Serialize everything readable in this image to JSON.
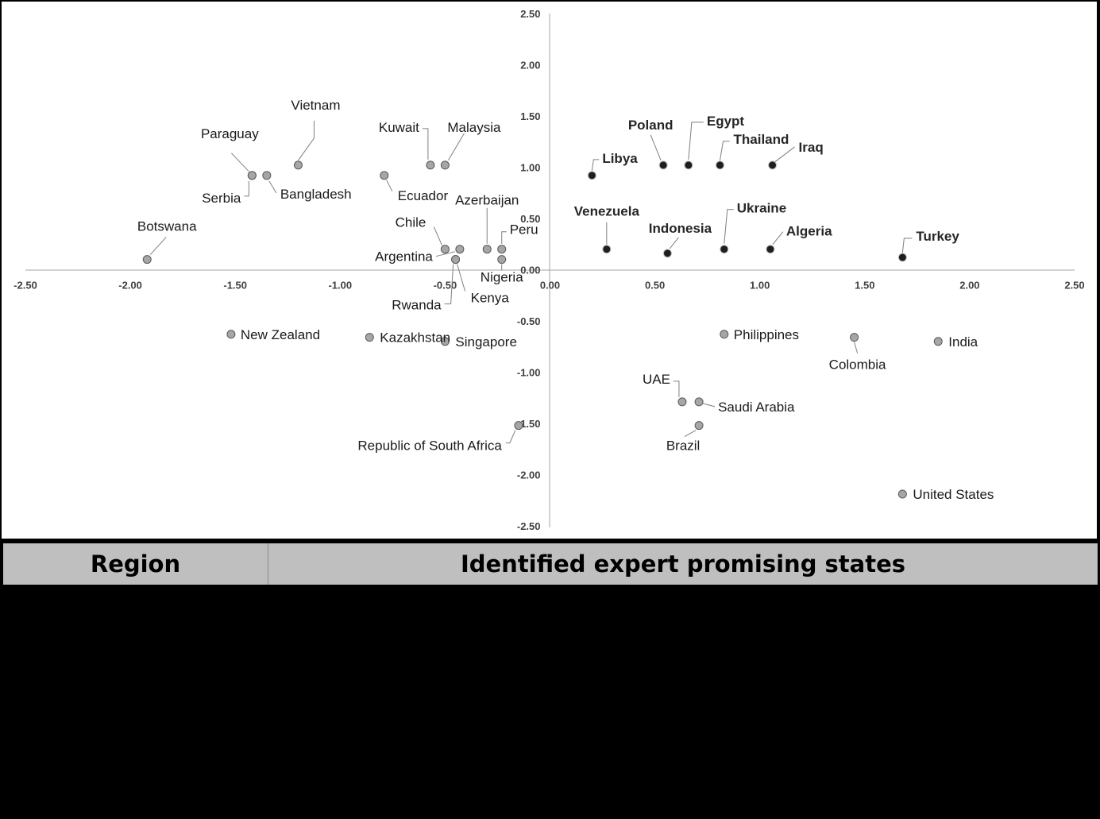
{
  "colors": {
    "group_a_fill": "#a6a6a6",
    "group_b_fill": "#1f1f1f",
    "axis": "#a6a6a6",
    "leader": "#7f7f7f",
    "table_header_bg": "#bfbfbf"
  },
  "chart_data": {
    "type": "scatter",
    "xlim": [
      -2.5,
      2.5
    ],
    "ylim": [
      -2.5,
      2.5
    ],
    "xticks": [
      "-2.50",
      "-2.00",
      "-1.50",
      "-1.00",
      "-0.50",
      "0.00",
      "0.50",
      "1.00",
      "1.50",
      "2.00",
      "2.50"
    ],
    "yticks": [
      "2.50",
      "2.00",
      "1.50",
      "1.00",
      "0.50",
      "0.00",
      "-0.50",
      "-1.00",
      "-1.50",
      "-2.00",
      "-2.50"
    ],
    "grid": false,
    "series": [
      {
        "marker": "light-gray circle",
        "points": [
          {
            "label": "Vietnam",
            "x": -1.2,
            "y": 1.02
          },
          {
            "label": "Paraguay",
            "x": -1.42,
            "y": 0.92
          },
          {
            "label": "Serbia",
            "x": -1.42,
            "y": 0.92
          },
          {
            "label": "Bangladesh",
            "x": -1.35,
            "y": 0.92
          },
          {
            "label": "Botswana",
            "x": -1.92,
            "y": 0.1
          },
          {
            "label": "Kuwait",
            "x": -0.57,
            "y": 1.02
          },
          {
            "label": "Malaysia",
            "x": -0.5,
            "y": 1.02
          },
          {
            "label": "Ecuador",
            "x": -0.79,
            "y": 0.92
          },
          {
            "label": "Azerbaijan",
            "x": -0.3,
            "y": 0.2
          },
          {
            "label": "Chile",
            "x": -0.5,
            "y": 0.2
          },
          {
            "label": "Peru",
            "x": -0.23,
            "y": 0.2
          },
          {
            "label": "Argentina",
            "x": -0.43,
            "y": 0.2
          },
          {
            "label": "Nigeria",
            "x": -0.23,
            "y": 0.1
          },
          {
            "label": "Rwanda",
            "x": -0.45,
            "y": 0.1
          },
          {
            "label": "Kenya",
            "x": -0.45,
            "y": 0.1
          },
          {
            "label": "New Zealand",
            "x": -1.52,
            "y": -0.63
          },
          {
            "label": "Kazakhstan",
            "x": -0.86,
            "y": -0.66
          },
          {
            "label": "Singapore",
            "x": -0.5,
            "y": -0.7
          },
          {
            "label": "Republic of South Africa",
            "x": -0.15,
            "y": -1.52
          },
          {
            "label": "Philippines",
            "x": 0.83,
            "y": -0.63
          },
          {
            "label": "Colombia",
            "x": 1.45,
            "y": -0.66
          },
          {
            "label": "India",
            "x": 1.85,
            "y": -0.7
          },
          {
            "label": "UAE",
            "x": 0.63,
            "y": -1.29
          },
          {
            "label": "Saudi Arabia",
            "x": 0.71,
            "y": -1.29
          },
          {
            "label": "Brazil",
            "x": 0.71,
            "y": -1.52
          },
          {
            "label": "United States",
            "x": 1.68,
            "y": -2.19
          }
        ]
      },
      {
        "marker": "black circle, bold labels",
        "points": [
          {
            "label": "Libya",
            "x": 0.2,
            "y": 0.92
          },
          {
            "label": "Poland",
            "x": 0.54,
            "y": 1.02
          },
          {
            "label": "Egypt",
            "x": 0.66,
            "y": 1.02
          },
          {
            "label": "Thailand",
            "x": 0.81,
            "y": 1.02
          },
          {
            "label": "Iraq",
            "x": 1.06,
            "y": 1.02
          },
          {
            "label": "Venezuela",
            "x": 0.27,
            "y": 0.2
          },
          {
            "label": "Indonesia",
            "x": 0.56,
            "y": 0.16
          },
          {
            "label": "Ukraine",
            "x": 0.83,
            "y": 0.2
          },
          {
            "label": "Algeria",
            "x": 1.05,
            "y": 0.2
          },
          {
            "label": "Turkey",
            "x": 1.68,
            "y": 0.12
          }
        ]
      }
    ]
  },
  "table": {
    "headers": [
      "Region",
      "Identified expert promising states"
    ]
  }
}
